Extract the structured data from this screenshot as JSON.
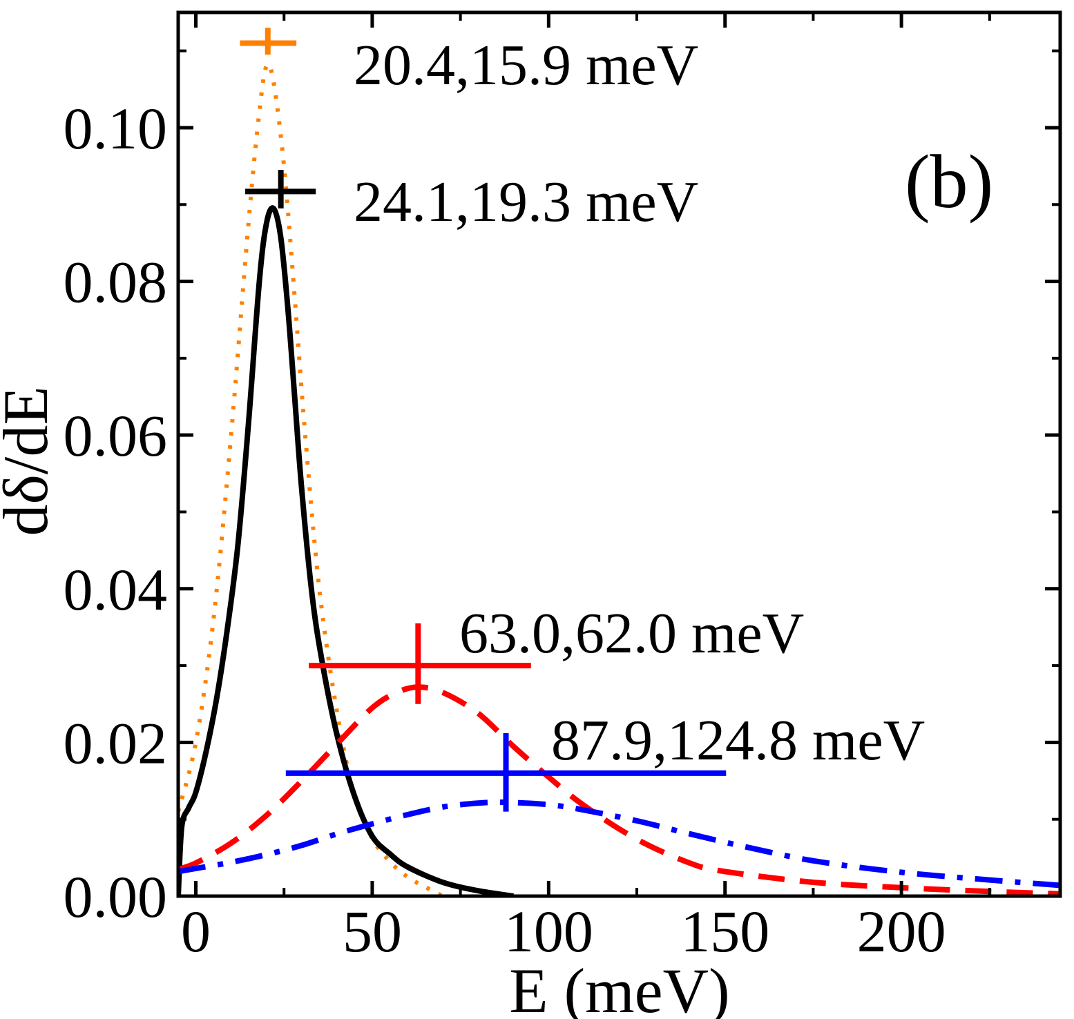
{
  "chart_data": {
    "type": "line",
    "panel_label": "(b)",
    "xlabel": "E (meV)",
    "ylabel": "dδ/dE",
    "xlim": [
      -5,
      245
    ],
    "ylim": [
      0,
      0.115
    ],
    "x_ticks": [
      0,
      50,
      100,
      150,
      200
    ],
    "x_tick_labels": [
      "0",
      "50",
      "100",
      "150",
      "200"
    ],
    "y_ticks": [
      0.0,
      0.02,
      0.04,
      0.06,
      0.08,
      0.1
    ],
    "y_tick_labels": [
      "0.00",
      "0.02",
      "0.04",
      "0.06",
      "0.08",
      "0.10"
    ],
    "y_minor_ticks": [
      0.01,
      0.03,
      0.05,
      0.07,
      0.09,
      0.11
    ],
    "grid": false,
    "series": [
      {
        "color": "#ff8000",
        "style": "dotted",
        "x": [
          -5,
          0,
          5,
          10,
          15,
          18,
          20,
          22,
          25,
          28,
          31,
          35,
          40,
          45,
          50,
          55,
          60,
          65,
          70
        ],
        "values": [
          0.011,
          0.02,
          0.036,
          0.06,
          0.088,
          0.102,
          0.108,
          0.106,
          0.095,
          0.078,
          0.06,
          0.04,
          0.024,
          0.013,
          0.0075,
          0.0045,
          0.0025,
          0.0012,
          0.0
        ]
      },
      {
        "color": "#000000",
        "style": "solid",
        "x": [
          -5,
          -4,
          -2,
          0,
          3,
          6,
          9,
          12,
          15,
          18,
          20,
          22,
          24,
          26,
          28,
          30,
          33,
          36,
          40,
          45,
          50,
          55,
          60,
          70,
          80,
          90
        ],
        "values": [
          0.0,
          0.009,
          0.0115,
          0.0135,
          0.019,
          0.026,
          0.035,
          0.046,
          0.062,
          0.08,
          0.0875,
          0.0895,
          0.086,
          0.077,
          0.065,
          0.053,
          0.039,
          0.03,
          0.021,
          0.013,
          0.0078,
          0.0055,
          0.0038,
          0.0018,
          0.0007,
          0.0
        ]
      },
      {
        "color": "#ff0000",
        "style": "dashed",
        "x": [
          -5,
          0,
          10,
          20,
          30,
          40,
          50,
          57,
          63,
          70,
          80,
          90,
          100,
          110,
          125,
          140,
          150,
          175,
          200,
          225,
          245
        ],
        "values": [
          0.0035,
          0.0043,
          0.0069,
          0.0105,
          0.015,
          0.0198,
          0.0245,
          0.0265,
          0.0272,
          0.0265,
          0.0238,
          0.0195,
          0.0155,
          0.0118,
          0.0074,
          0.0043,
          0.0032,
          0.0018,
          0.0011,
          0.0006,
          0.0003
        ]
      },
      {
        "color": "#0000ff",
        "style": "dashdot",
        "x": [
          -5,
          0,
          10,
          20,
          30,
          40,
          50,
          60,
          70,
          80,
          88,
          100,
          110,
          125,
          140,
          155,
          175,
          200,
          225,
          245
        ],
        "values": [
          0.0032,
          0.0036,
          0.0044,
          0.0054,
          0.0066,
          0.0081,
          0.0094,
          0.0106,
          0.0116,
          0.0121,
          0.0122,
          0.0119,
          0.0112,
          0.0098,
          0.0081,
          0.0065,
          0.0046,
          0.0031,
          0.0021,
          0.0014
        ]
      }
    ],
    "error_crosses": [
      {
        "color": "#ff8000",
        "label": "20.4,15.9 meV",
        "x": 20.4,
        "y": 0.111,
        "x_err": [
          12.5,
          28.5
        ],
        "y_err": [
          0.1095,
          0.113
        ]
      },
      {
        "color": "#000000",
        "label": "24.1,19.3 meV",
        "x": 24.1,
        "y": 0.0917,
        "x_err": [
          14,
          34
        ],
        "y_err": [
          0.0895,
          0.0945
        ]
      },
      {
        "color": "#ff0000",
        "label": "63.0,62.0 meV",
        "x": 63.0,
        "y": 0.03,
        "x_err": [
          32,
          95
        ],
        "y_err": [
          0.025,
          0.0355
        ]
      },
      {
        "color": "#0000ff",
        "label": "87.9,124.8 meV",
        "x": 87.9,
        "y": 0.016,
        "x_err": [
          25.5,
          150.3
        ],
        "y_err": [
          0.011,
          0.0212
        ]
      }
    ]
  }
}
